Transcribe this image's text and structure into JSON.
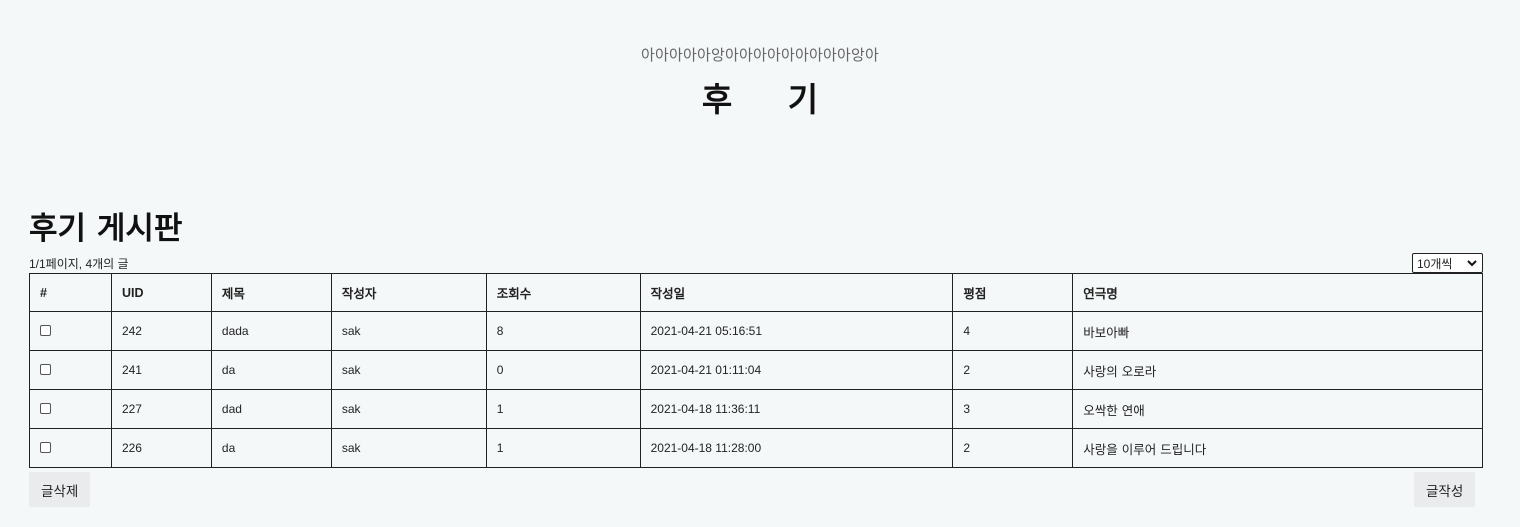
{
  "hero": {
    "subtitle": "아아아아아앙아아아아아아아아아앙아",
    "title": "후 기"
  },
  "board": {
    "title": "후기 게시판",
    "page_info": "1/1페이지, 4개의 글",
    "per_page_selected": "10개씩",
    "columns": [
      "#",
      "UID",
      "제목",
      "작성자",
      "조회수",
      "작성일",
      "평점",
      "연극명"
    ],
    "rows": [
      {
        "checked": false,
        "uid": "242",
        "subject": "dada",
        "author": "sak",
        "views": "8",
        "date": "2021-04-21 05:16:51",
        "rating": "4",
        "play": "바보아빠"
      },
      {
        "checked": false,
        "uid": "241",
        "subject": "da",
        "author": "sak",
        "views": "0",
        "date": "2021-04-21 01:11:04",
        "rating": "2",
        "play": "사랑의 오로라"
      },
      {
        "checked": false,
        "uid": "227",
        "subject": "dad",
        "author": "sak",
        "views": "1",
        "date": "2021-04-18 11:36:11",
        "rating": "3",
        "play": "오싹한 연애"
      },
      {
        "checked": false,
        "uid": "226",
        "subject": "da",
        "author": "sak",
        "views": "1",
        "date": "2021-04-18 11:28:00",
        "rating": "2",
        "play": "사랑을 이루어 드립니다"
      }
    ]
  },
  "buttons": {
    "delete_label": "글삭제",
    "write_label": "글작성"
  },
  "icons": {
    "select_arrow": "chevron-down-icon"
  }
}
